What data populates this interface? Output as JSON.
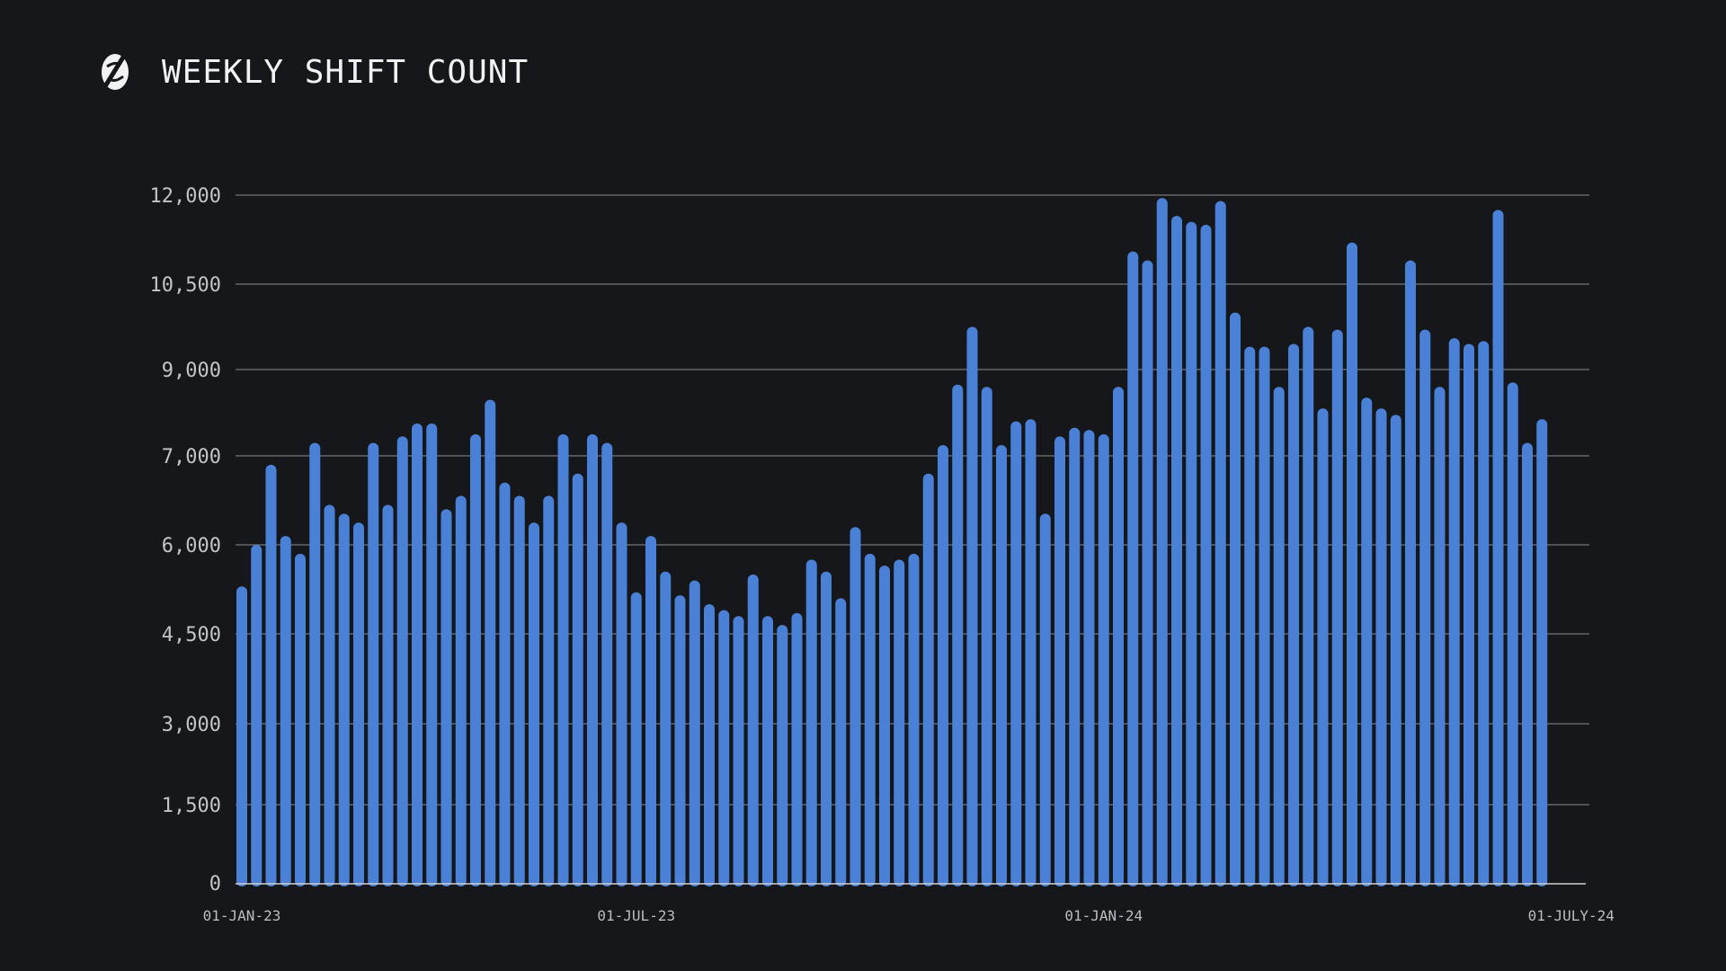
{
  "header": {
    "title": "WEEKLY SHIFT COUNT",
    "logo_icon": "s-logo-icon"
  },
  "colors": {
    "background": "#16171b",
    "bar": "#4a80d6",
    "gridline": "#8e8e8e",
    "text": "#f2f2f2"
  },
  "chart_data": {
    "type": "bar",
    "title": "WEEKLY SHIFT COUNT",
    "xlabel": "",
    "ylabel": "",
    "grid": true,
    "y_ticks": [
      {
        "value": 0,
        "label": "0"
      },
      {
        "value": 1500,
        "label": "1,500"
      },
      {
        "value": 3000,
        "label": "3,000"
      },
      {
        "value": 4500,
        "label": "4,500"
      },
      {
        "value": 6000,
        "label": "6,000"
      },
      {
        "value": 7000,
        "label": "7,000"
      },
      {
        "value": 9000,
        "label": "9,000"
      },
      {
        "value": 10500,
        "label": "10,500"
      },
      {
        "value": 12000,
        "label": "12,000"
      }
    ],
    "x_ticks": [
      {
        "index": 0,
        "label": "01-JAN-23"
      },
      {
        "index": 27,
        "label": "01-JUL-23"
      },
      {
        "index": 59,
        "label": "01-JAN-24"
      },
      {
        "index": 91,
        "label": "01-JULY-24"
      }
    ],
    "values": [
      5300,
      6000,
      6900,
      6100,
      5850,
      7300,
      6450,
      6350,
      6250,
      7300,
      6450,
      7450,
      7750,
      7750,
      6400,
      6550,
      7500,
      8300,
      6700,
      6550,
      6250,
      6550,
      7500,
      6800,
      7500,
      7300,
      6250,
      5200,
      6100,
      5550,
      5150,
      5400,
      5000,
      4900,
      4800,
      5500,
      4800,
      4650,
      4850,
      5750,
      5550,
      5100,
      6200,
      5850,
      5650,
      5750,
      5850,
      6800,
      7250,
      8650,
      9750,
      8600,
      7250,
      7800,
      7850,
      6350,
      7450,
      7650,
      7600,
      7500,
      8600,
      11050,
      10900,
      11950,
      11650,
      11550,
      11500,
      11900,
      10000,
      9400,
      9400,
      8600,
      9450,
      9750,
      8100,
      9700,
      11200,
      8350,
      8100,
      7950,
      10900,
      9700,
      8600,
      9550,
      9450,
      9500,
      11750,
      8700,
      7300,
      7850
    ]
  }
}
